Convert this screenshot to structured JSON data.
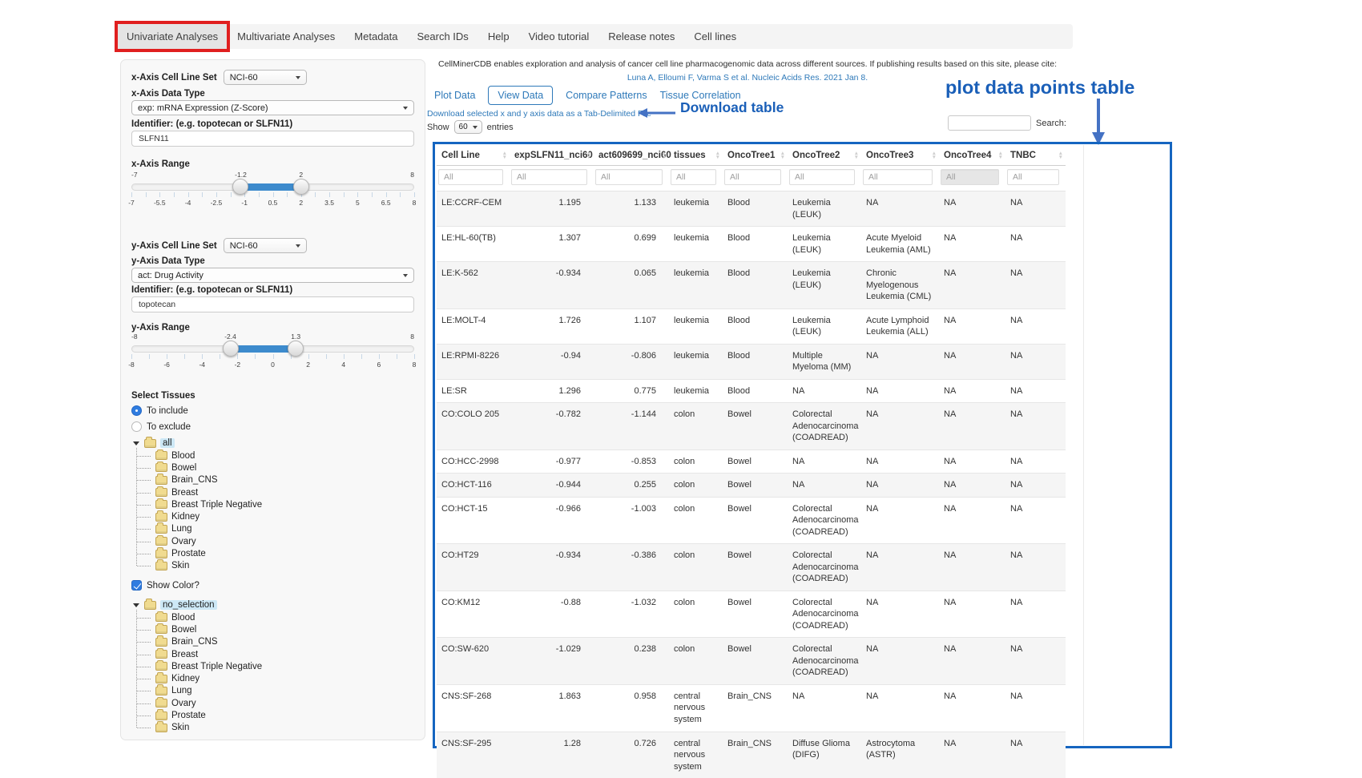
{
  "colors": {
    "annotation_red": "#e01f1f",
    "annotation_blue": "#1a5fb8",
    "arrow_blue": "#4472c4",
    "link_blue": "#2e79b9",
    "slider_blue": "#3d8bcd",
    "tree_highlight": "#cde8f6"
  },
  "nav": {
    "items": [
      {
        "label": "Univariate Analyses",
        "active": true,
        "red_boxed": true
      },
      {
        "label": "Multivariate Analyses",
        "active": false,
        "red_boxed": false
      },
      {
        "label": "Metadata",
        "active": false,
        "red_boxed": false
      },
      {
        "label": "Search IDs",
        "active": false,
        "red_boxed": false
      },
      {
        "label": "Help",
        "active": false,
        "red_boxed": false
      },
      {
        "label": "Video tutorial",
        "active": false,
        "red_boxed": false
      },
      {
        "label": "Release notes",
        "active": false,
        "red_boxed": false
      },
      {
        "label": "Cell lines",
        "active": false,
        "red_boxed": false
      }
    ]
  },
  "sidebar": {
    "x_cell_line_set_label": "x-Axis Cell Line Set",
    "x_cell_line_set_value": "NCI-60",
    "x_data_type_label": "x-Axis Data Type",
    "x_data_type_value": "exp: mRNA Expression (Z-Score)",
    "x_identifier_label": "Identifier: (e.g. topotecan or SLFN11)",
    "x_identifier_value": "SLFN11",
    "x_range": {
      "label": "x-Axis Range",
      "min": -7,
      "max": 8,
      "handles": [
        -1.2,
        2
      ],
      "handle_labels": [
        "-1.2",
        "2"
      ],
      "min_label": "-7",
      "max_label": "8",
      "tick_labels": [
        "-7",
        "-5.5",
        "-4",
        "-2.5",
        "-1",
        "0.5",
        "2",
        "3.5",
        "5",
        "6.5",
        "8"
      ]
    },
    "y_cell_line_set_label": "y-Axis Cell Line Set",
    "y_cell_line_set_value": "NCI-60",
    "y_data_type_label": "y-Axis Data Type",
    "y_data_type_value": "act: Drug Activity",
    "y_identifier_label": "Identifier: (e.g. topotecan or SLFN11)",
    "y_identifier_value": "topotecan",
    "y_range": {
      "label": "y-Axis Range",
      "min": -8,
      "max": 8,
      "handles": [
        -2.4,
        1.3
      ],
      "handle_labels": [
        "-2.4",
        "1.3"
      ],
      "min_label": "-8",
      "max_label": "8",
      "tick_labels": [
        "-8",
        "-6",
        "-4",
        "-2",
        "0",
        "2",
        "4",
        "6",
        "8"
      ]
    },
    "select_tissues_label": "Select Tissues",
    "include_label": "To include",
    "exclude_label": "To exclude",
    "include_selected": true,
    "show_color_label": "Show Color?",
    "show_color_checked": true,
    "tissue_tree": {
      "root": "all",
      "children": [
        "Blood",
        "Bowel",
        "Brain_CNS",
        "Breast",
        "Breast Triple Negative",
        "Kidney",
        "Lung",
        "Ovary",
        "Prostate",
        "Skin"
      ]
    },
    "color_tree": {
      "root": "no_selection",
      "children": [
        "Blood",
        "Bowel",
        "Brain_CNS",
        "Breast",
        "Breast Triple Negative",
        "Kidney",
        "Lung",
        "Ovary",
        "Prostate",
        "Skin"
      ]
    }
  },
  "main": {
    "citation_text": "CellMinerCDB enables exploration and analysis of cancer cell line pharmacogenomic data across different sources. If publishing results based on this site, please cite:",
    "citation_link": "Luna A, Elloumi F, Varma S et al. Nucleic Acids Res. 2021 Jan 8.",
    "tabs": [
      {
        "label": "Plot Data",
        "active": false
      },
      {
        "label": "View Data",
        "active": true
      },
      {
        "label": "Compare Patterns",
        "active": false
      },
      {
        "label": "Tissue Correlation",
        "active": false
      }
    ],
    "download_link_label": "Download selected x and y axis data as a Tab-Delimited File",
    "show_label": "Show",
    "page_size": "60",
    "entries_label": "entries",
    "search_label": "Search:",
    "search_value": ""
  },
  "annotations": {
    "download_table_label": "Download table",
    "plot_table_label": "plot data points table"
  },
  "table": {
    "columns": [
      "Cell Line",
      "expSLFN11_nci60",
      "act609699_nci60",
      "tissues",
      "OncoTree1",
      "OncoTree2",
      "OncoTree3",
      "OncoTree4",
      "TNBC"
    ],
    "filter_placeholder": "All",
    "gray_filter_index": 7,
    "rows": [
      [
        "LE:CCRF-CEM",
        "1.195",
        "1.133",
        "leukemia",
        "Blood",
        "Leukemia (LEUK)",
        "NA",
        "NA",
        "NA"
      ],
      [
        "LE:HL-60(TB)",
        "1.307",
        "0.699",
        "leukemia",
        "Blood",
        "Leukemia (LEUK)",
        "Acute Myeloid Leukemia (AML)",
        "NA",
        "NA"
      ],
      [
        "LE:K-562",
        "-0.934",
        "0.065",
        "leukemia",
        "Blood",
        "Leukemia (LEUK)",
        "Chronic Myelogenous Leukemia (CML)",
        "NA",
        "NA"
      ],
      [
        "LE:MOLT-4",
        "1.726",
        "1.107",
        "leukemia",
        "Blood",
        "Leukemia (LEUK)",
        "Acute Lymphoid Leukemia (ALL)",
        "NA",
        "NA"
      ],
      [
        "LE:RPMI-8226",
        "-0.94",
        "-0.806",
        "leukemia",
        "Blood",
        "Multiple Myeloma (MM)",
        "NA",
        "NA",
        "NA"
      ],
      [
        "LE:SR",
        "1.296",
        "0.775",
        "leukemia",
        "Blood",
        "NA",
        "NA",
        "NA",
        "NA"
      ],
      [
        "CO:COLO 205",
        "-0.782",
        "-1.144",
        "colon",
        "Bowel",
        "Colorectal Adenocarcinoma (COADREAD)",
        "NA",
        "NA",
        "NA"
      ],
      [
        "CO:HCC-2998",
        "-0.977",
        "-0.853",
        "colon",
        "Bowel",
        "NA",
        "NA",
        "NA",
        "NA"
      ],
      [
        "CO:HCT-116",
        "-0.944",
        "0.255",
        "colon",
        "Bowel",
        "NA",
        "NA",
        "NA",
        "NA"
      ],
      [
        "CO:HCT-15",
        "-0.966",
        "-1.003",
        "colon",
        "Bowel",
        "Colorectal Adenocarcinoma (COADREAD)",
        "NA",
        "NA",
        "NA"
      ],
      [
        "CO:HT29",
        "-0.934",
        "-0.386",
        "colon",
        "Bowel",
        "Colorectal Adenocarcinoma (COADREAD)",
        "NA",
        "NA",
        "NA"
      ],
      [
        "CO:KM12",
        "-0.88",
        "-1.032",
        "colon",
        "Bowel",
        "Colorectal Adenocarcinoma (COADREAD)",
        "NA",
        "NA",
        "NA"
      ],
      [
        "CO:SW-620",
        "-1.029",
        "0.238",
        "colon",
        "Bowel",
        "Colorectal Adenocarcinoma (COADREAD)",
        "NA",
        "NA",
        "NA"
      ],
      [
        "CNS:SF-268",
        "1.863",
        "0.958",
        "central nervous system",
        "Brain_CNS",
        "NA",
        "NA",
        "NA",
        "NA"
      ],
      [
        "CNS:SF-295",
        "1.28",
        "0.726",
        "central nervous system",
        "Brain_CNS",
        "Diffuse Glioma (DIFG)",
        "Astrocytoma (ASTR)",
        "NA",
        "NA"
      ]
    ]
  }
}
